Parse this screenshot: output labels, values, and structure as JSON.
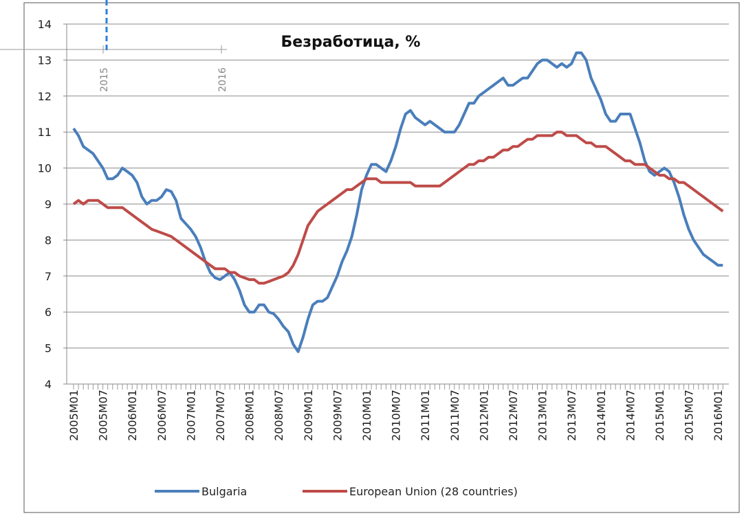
{
  "chart_data": {
    "type": "line",
    "title": "Безработица, %",
    "annotations": [
      "2015",
      "2016"
    ],
    "categories": [
      "2005M01",
      null,
      null,
      null,
      null,
      null,
      "2005M07",
      null,
      null,
      null,
      null,
      null,
      "2006M01",
      null,
      null,
      null,
      null,
      null,
      "2006M07",
      null,
      null,
      null,
      null,
      null,
      "2007M01",
      null,
      null,
      null,
      null,
      null,
      "2007M07",
      null,
      null,
      null,
      null,
      null,
      "2008M01",
      null,
      null,
      null,
      null,
      null,
      "2008M07",
      null,
      null,
      null,
      null,
      null,
      "2009M01",
      null,
      null,
      null,
      null,
      null,
      "2009M07",
      null,
      null,
      null,
      null,
      null,
      "2010M01",
      null,
      null,
      null,
      null,
      null,
      "2010M07",
      null,
      null,
      null,
      null,
      null,
      "2011M01",
      null,
      null,
      null,
      null,
      null,
      "2011M07",
      null,
      null,
      null,
      null,
      null,
      "2012M01",
      null,
      null,
      null,
      null,
      null,
      "2012M07",
      null,
      null,
      null,
      null,
      null,
      "2013M01",
      null,
      null,
      null,
      null,
      null,
      "2013M07",
      null,
      null,
      null,
      null,
      null,
      "2014M01",
      null,
      null,
      null,
      null,
      null,
      "2014M07",
      null,
      null,
      null,
      null,
      null,
      "2015M01",
      null,
      null,
      null,
      null,
      null,
      "2015M07",
      null,
      null,
      null,
      null,
      null,
      "2016M01",
      null
    ],
    "series": [
      {
        "name": "Bulgaria",
        "color": "#4a7ebb",
        "values": [
          11.1,
          10.9,
          10.6,
          10.5,
          10.4,
          10.2,
          10.0,
          9.7,
          9.7,
          9.8,
          10.0,
          9.9,
          9.8,
          9.6,
          9.2,
          9.0,
          9.1,
          9.1,
          9.2,
          9.4,
          9.35,
          9.1,
          8.6,
          8.45,
          8.3,
          8.1,
          7.8,
          7.4,
          7.1,
          6.95,
          6.9,
          7.0,
          7.1,
          6.9,
          6.6,
          6.2,
          6.0,
          6.0,
          6.2,
          6.2,
          6.0,
          5.95,
          5.8,
          5.6,
          5.45,
          5.1,
          4.9,
          5.3,
          5.8,
          6.2,
          6.3,
          6.3,
          6.4,
          6.7,
          7.0,
          7.4,
          7.7,
          8.1,
          8.7,
          9.4,
          9.8,
          10.1,
          10.1,
          10.0,
          9.9,
          10.2,
          10.6,
          11.1,
          11.5,
          11.6,
          11.4,
          11.3,
          11.2,
          11.3,
          11.2,
          11.1,
          11.0,
          11.0,
          11.0,
          11.2,
          11.5,
          11.8,
          11.8,
          12.0,
          12.1,
          12.2,
          12.3,
          12.4,
          12.5,
          12.3,
          12.3,
          12.4,
          12.5,
          12.5,
          12.7,
          12.9,
          13.0,
          13.0,
          12.9,
          12.8,
          12.9,
          12.8,
          12.9,
          13.2,
          13.2,
          13.0,
          12.5,
          12.2,
          11.9,
          11.5,
          11.3,
          11.3,
          11.5,
          11.5,
          11.5,
          11.1,
          10.7,
          10.2,
          9.9,
          9.8,
          9.9,
          10.0,
          9.9,
          9.6,
          9.2,
          8.7,
          8.3,
          8.0,
          7.8,
          7.6,
          7.5,
          7.4,
          7.3,
          7.3
        ]
      },
      {
        "name": "European Union (28 countries)",
        "color": "#be4b48",
        "values": [
          9.0,
          9.1,
          9.0,
          9.1,
          9.1,
          9.1,
          9.0,
          8.9,
          8.9,
          8.9,
          8.9,
          8.8,
          8.7,
          8.6,
          8.5,
          8.4,
          8.3,
          8.25,
          8.2,
          8.15,
          8.1,
          8.0,
          7.9,
          7.8,
          7.7,
          7.6,
          7.5,
          7.4,
          7.3,
          7.2,
          7.2,
          7.2,
          7.1,
          7.1,
          7.0,
          6.95,
          6.9,
          6.9,
          6.8,
          6.8,
          6.85,
          6.9,
          6.95,
          7.0,
          7.1,
          7.3,
          7.6,
          8.0,
          8.4,
          8.6,
          8.8,
          8.9,
          9.0,
          9.1,
          9.2,
          9.3,
          9.4,
          9.4,
          9.5,
          9.6,
          9.7,
          9.7,
          9.7,
          9.6,
          9.6,
          9.6,
          9.6,
          9.6,
          9.6,
          9.6,
          9.5,
          9.5,
          9.5,
          9.5,
          9.5,
          9.5,
          9.6,
          9.7,
          9.8,
          9.9,
          10.0,
          10.1,
          10.1,
          10.2,
          10.2,
          10.3,
          10.3,
          10.4,
          10.5,
          10.5,
          10.6,
          10.6,
          10.7,
          10.8,
          10.8,
          10.9,
          10.9,
          10.9,
          10.9,
          11.0,
          11.0,
          10.9,
          10.9,
          10.9,
          10.8,
          10.7,
          10.7,
          10.6,
          10.6,
          10.6,
          10.5,
          10.4,
          10.3,
          10.2,
          10.2,
          10.1,
          10.1,
          10.1,
          10.0,
          9.9,
          9.8,
          9.8,
          9.7,
          9.7,
          9.6,
          9.6,
          9.5,
          9.4,
          9.3,
          9.2,
          9.1,
          9.0,
          8.9,
          8.8
        ]
      }
    ],
    "ylim": [
      4,
      14
    ],
    "yticks": [
      4,
      5,
      6,
      7,
      8,
      9,
      10,
      11,
      12,
      13,
      14
    ],
    "grid": true,
    "legend": "bottom"
  }
}
